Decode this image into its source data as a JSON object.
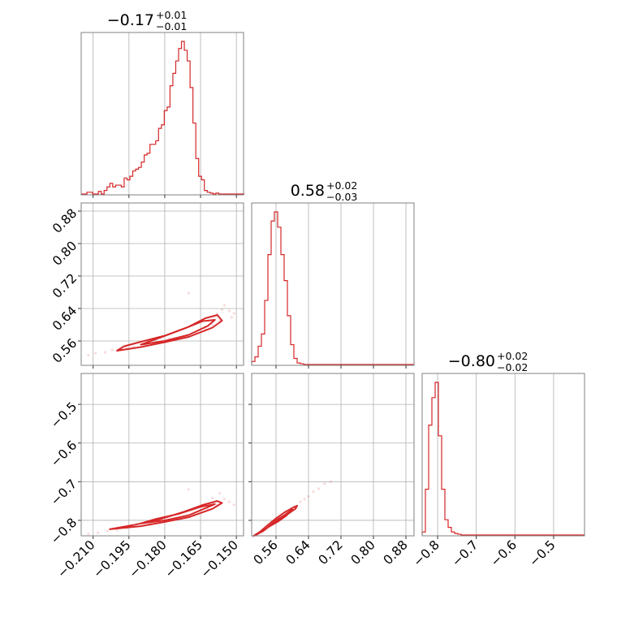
{
  "chart_data": {
    "type": "corner",
    "color": "#d62728",
    "parameters": [
      {
        "index": 0,
        "median": -0.17,
        "title_main": "−0.17",
        "title_plus": "+0.01",
        "title_minus": "−0.01",
        "range": [
          -0.215,
          -0.147
        ],
        "ticks": [
          -0.21,
          -0.195,
          -0.18,
          -0.165,
          -0.15
        ],
        "tick_labels": [
          "−0.210",
          "−0.195",
          "−0.180",
          "−0.165",
          "−0.150"
        ],
        "histogram": {
          "start": -0.215,
          "bin_width": 0.0012,
          "counts": [
            0.0,
            0.0,
            0.1,
            0.1,
            0.0,
            0.0,
            0.15,
            0.0,
            0.2,
            0.4,
            0.6,
            0.4,
            0.5,
            0.5,
            0.4,
            0.9,
            0.8,
            1.0,
            1.3,
            1.4,
            1.5,
            1.8,
            2.2,
            2.3,
            2.8,
            2.8,
            3.0,
            3.7,
            3.9,
            4.7,
            4.9,
            6.1,
            6.8,
            7.5,
            8.2,
            8.6,
            8.1,
            7.5,
            6.0,
            4.0,
            2.0,
            1.0,
            0.8,
            0.2,
            0.1,
            0.05,
            0.0,
            0.05,
            0.0,
            0.0,
            0.0,
            0.0,
            0.0,
            0.0,
            0.0,
            0.0,
            0.0
          ],
          "max": 8.6
        }
      },
      {
        "index": 1,
        "median": 0.58,
        "title_main": "0.58",
        "title_plus": "+0.02",
        "title_minus": "−0.03",
        "range": [
          0.5,
          0.9
        ],
        "ticks": [
          0.56,
          0.64,
          0.72,
          0.8,
          0.88
        ],
        "tick_labels": [
          "0.56",
          "0.64",
          "0.72",
          "0.80",
          "0.88"
        ],
        "histogram": {
          "start": 0.5,
          "bin_width": 0.008,
          "counts": [
            0.02,
            0.05,
            0.12,
            0.2,
            0.42,
            0.72,
            0.94,
            1.0,
            0.9,
            0.72,
            0.55,
            0.32,
            0.13,
            0.04,
            0.01,
            0.005,
            0,
            0,
            0,
            0,
            0,
            0,
            0,
            0,
            0,
            0,
            0,
            0,
            0,
            0,
            0,
            0,
            0,
            0,
            0,
            0,
            0,
            0,
            0,
            0,
            0,
            0,
            0,
            0,
            0,
            0,
            0,
            0,
            0,
            0
          ],
          "max": 1.0
        }
      },
      {
        "index": 2,
        "median": -0.8,
        "title_main": "−0.80",
        "title_plus": "+0.02",
        "title_minus": "−0.02",
        "range": [
          -0.84,
          -0.42
        ],
        "ticks": [
          -0.8,
          -0.7,
          -0.6,
          -0.5
        ],
        "tick_labels": [
          "−0.8",
          "−0.7",
          "−0.6",
          "−0.5"
        ],
        "left_tick_labels": [
          "−0.5",
          "−0.6",
          "−0.7",
          "−0.8"
        ],
        "histogram": {
          "start": -0.84,
          "bin_width": 0.0084,
          "counts": [
            0.02,
            0.3,
            0.72,
            0.9,
            1.0,
            0.65,
            0.3,
            0.1,
            0.05,
            0.02,
            0.01,
            0.005,
            0,
            0,
            0,
            0,
            0,
            0,
            0,
            0,
            0,
            0,
            0,
            0,
            0,
            0,
            0,
            0,
            0,
            0,
            0,
            0,
            0,
            0,
            0,
            0,
            0,
            0,
            0,
            0,
            0,
            0,
            0,
            0,
            0,
            0,
            0,
            0,
            0,
            0
          ],
          "max": 1.0
        }
      }
    ],
    "pairs": [
      {
        "x_param": 0,
        "y_param": 1,
        "contours": [
          [
            [
              -0.2,
              0.536
            ],
            [
              -0.19,
              0.545
            ],
            [
              -0.18,
              0.557
            ],
            [
              -0.17,
              0.57
            ],
            [
              -0.16,
              0.593
            ],
            [
              -0.156,
              0.61
            ],
            [
              -0.158,
              0.624
            ],
            [
              -0.163,
              0.616
            ],
            [
              -0.17,
              0.595
            ],
            [
              -0.18,
              0.573
            ],
            [
              -0.19,
              0.558
            ],
            [
              -0.197,
              0.547
            ]
          ],
          [
            [
              -0.19,
              0.551
            ],
            [
              -0.18,
              0.56
            ],
            [
              -0.17,
              0.575
            ],
            [
              -0.162,
              0.597
            ],
            [
              -0.159,
              0.612
            ],
            [
              -0.164,
              0.609
            ],
            [
              -0.172,
              0.59
            ],
            [
              -0.182,
              0.568
            ]
          ]
        ],
        "scatter": [
          [
            -0.212,
            0.525
          ],
          [
            -0.209,
            0.53
          ],
          [
            -0.205,
            0.532
          ],
          [
            -0.202,
            0.538
          ],
          [
            -0.199,
            0.54
          ],
          [
            -0.196,
            0.543
          ],
          [
            -0.193,
            0.546
          ],
          [
            -0.188,
            0.551
          ],
          [
            -0.185,
            0.553
          ],
          [
            -0.176,
            0.566
          ],
          [
            -0.172,
            0.572
          ],
          [
            -0.167,
            0.58
          ],
          [
            -0.163,
            0.588
          ],
          [
            -0.16,
            0.6
          ],
          [
            -0.158,
            0.626
          ],
          [
            -0.156,
            0.637
          ],
          [
            -0.153,
            0.634
          ],
          [
            -0.151,
            0.628
          ],
          [
            -0.155,
            0.648
          ],
          [
            -0.157,
            0.61
          ],
          [
            -0.152,
            0.618
          ],
          [
            -0.17,
            0.678
          ],
          [
            -0.181,
            0.557
          ],
          [
            -0.178,
            0.565
          ]
        ]
      },
      {
        "x_param": 0,
        "y_param": 2,
        "contours": [
          [
            [
              -0.203,
              -0.823
            ],
            [
              -0.19,
              -0.815
            ],
            [
              -0.18,
              -0.804
            ],
            [
              -0.17,
              -0.792
            ],
            [
              -0.16,
              -0.77
            ],
            [
              -0.156,
              -0.755
            ],
            [
              -0.158,
              -0.75
            ],
            [
              -0.164,
              -0.76
            ],
            [
              -0.172,
              -0.778
            ],
            [
              -0.182,
              -0.797
            ],
            [
              -0.193,
              -0.812
            ]
          ],
          [
            [
              -0.19,
              -0.808
            ],
            [
              -0.18,
              -0.8
            ],
            [
              -0.17,
              -0.787
            ],
            [
              -0.162,
              -0.766
            ],
            [
              -0.159,
              -0.758
            ],
            [
              -0.165,
              -0.765
            ],
            [
              -0.174,
              -0.783
            ],
            [
              -0.184,
              -0.797
            ]
          ]
        ],
        "scatter": [
          [
            -0.212,
            -0.835
          ],
          [
            -0.208,
            -0.832
          ],
          [
            -0.204,
            -0.828
          ],
          [
            -0.2,
            -0.825
          ],
          [
            -0.196,
            -0.82
          ],
          [
            -0.186,
            -0.81
          ],
          [
            -0.176,
            -0.797
          ],
          [
            -0.168,
            -0.785
          ],
          [
            -0.162,
            -0.77
          ],
          [
            -0.158,
            -0.76
          ],
          [
            -0.155,
            -0.745
          ],
          [
            -0.153,
            -0.752
          ],
          [
            -0.151,
            -0.76
          ],
          [
            -0.157,
            -0.73
          ],
          [
            -0.17,
            -0.72
          ],
          [
            -0.16,
            -0.742
          ]
        ]
      },
      {
        "x_param": 1,
        "y_param": 2,
        "contours": [
          [
            [
              0.505,
              -0.84
            ],
            [
              0.52,
              -0.83
            ],
            [
              0.54,
              -0.812
            ],
            [
              0.56,
              -0.795
            ],
            [
              0.58,
              -0.78
            ],
            [
              0.6,
              -0.768
            ],
            [
              0.612,
              -0.762
            ],
            [
              0.608,
              -0.77
            ],
            [
              0.59,
              -0.783
            ],
            [
              0.57,
              -0.798
            ],
            [
              0.55,
              -0.81
            ],
            [
              0.528,
              -0.828
            ],
            [
              0.51,
              -0.838
            ]
          ],
          [
            [
              0.54,
              -0.818
            ],
            [
              0.56,
              -0.8
            ],
            [
              0.58,
              -0.787
            ],
            [
              0.6,
              -0.772
            ],
            [
              0.585,
              -0.788
            ],
            [
              0.565,
              -0.803
            ]
          ]
        ],
        "scatter": [
          [
            0.503,
            -0.842
          ],
          [
            0.515,
            -0.835
          ],
          [
            0.53,
            -0.822
          ],
          [
            0.548,
            -0.805
          ],
          [
            0.565,
            -0.792
          ],
          [
            0.585,
            -0.778
          ],
          [
            0.605,
            -0.765
          ],
          [
            0.62,
            -0.752
          ],
          [
            0.63,
            -0.745
          ],
          [
            0.64,
            -0.738
          ],
          [
            0.652,
            -0.726
          ],
          [
            0.665,
            -0.718
          ],
          [
            0.68,
            -0.705
          ],
          [
            0.695,
            -0.7
          ]
        ]
      }
    ]
  }
}
